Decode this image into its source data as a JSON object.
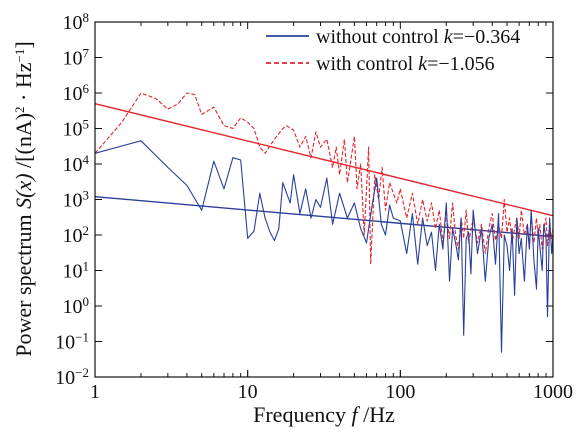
{
  "chart_data": {
    "type": "line",
    "xscale": "log",
    "yscale": "log",
    "xlim": [
      1,
      1000
    ],
    "ylim": [
      0.01,
      100000000
    ],
    "xticks": [
      {
        "value": 1,
        "label": "1"
      },
      {
        "value": 10,
        "label": "10"
      },
      {
        "value": 100,
        "label": "100"
      },
      {
        "value": 1000,
        "label": "1000"
      }
    ],
    "yticks": [
      {
        "value": 0.01,
        "base": "10",
        "exp": "−2"
      },
      {
        "value": 0.1,
        "base": "10",
        "exp": "−1"
      },
      {
        "value": 1,
        "base": "10",
        "exp": "0"
      },
      {
        "value": 10,
        "base": "10",
        "exp": "1"
      },
      {
        "value": 100,
        "base": "10",
        "exp": "2"
      },
      {
        "value": 1000,
        "base": "10",
        "exp": "3"
      },
      {
        "value": 10000,
        "base": "10",
        "exp": "4"
      },
      {
        "value": 100000,
        "base": "10",
        "exp": "5"
      },
      {
        "value": 1000000,
        "base": "10",
        "exp": "6"
      },
      {
        "value": 10000000,
        "base": "10",
        "exp": "7"
      },
      {
        "value": 100000000,
        "base": "10",
        "exp": "8"
      }
    ],
    "xlabel": {
      "prefix": "Frequency ",
      "var": "f",
      "suffix": " /Hz"
    },
    "ylabel": {
      "prefix": "Power spectrum ",
      "var": "S(x)",
      "suffix": " /[(nA)",
      "sq": "2",
      "mid": " · Hz",
      "inv": "−1",
      "close": "]"
    },
    "grid": false,
    "legend_position": "top-right",
    "series": [
      {
        "legend": {
          "prefix": "without control ",
          "var": "k",
          "suffix": "=−0.364"
        },
        "color": "#2a3f9a",
        "dash": "solid",
        "points": [
          [
            1,
            20000
          ],
          [
            2,
            45000
          ],
          [
            3,
            8000
          ],
          [
            4,
            2500
          ],
          [
            5,
            500
          ],
          [
            6,
            12000
          ],
          [
            7,
            2000
          ],
          [
            8,
            15000
          ],
          [
            9,
            13000
          ],
          [
            10,
            80
          ],
          [
            11,
            130
          ],
          [
            12,
            1500
          ],
          [
            13,
            300
          ],
          [
            14,
            120
          ],
          [
            15,
            70
          ],
          [
            16,
            150
          ],
          [
            17,
            3000
          ],
          [
            18,
            1500
          ],
          [
            19,
            800
          ],
          [
            20,
            5000
          ],
          [
            22,
            400
          ],
          [
            24,
            2000
          ],
          [
            26,
            300
          ],
          [
            28,
            1000
          ],
          [
            30,
            600
          ],
          [
            33,
            4000
          ],
          [
            36,
            200
          ],
          [
            40,
            1500
          ],
          [
            45,
            300
          ],
          [
            50,
            800
          ],
          [
            55,
            150
          ],
          [
            60,
            60
          ],
          [
            65,
            600
          ],
          [
            70,
            4000
          ],
          [
            75,
            200
          ],
          [
            80,
            100
          ],
          [
            85,
            700
          ],
          [
            90,
            300
          ],
          [
            100,
            250
          ],
          [
            110,
            30
          ],
          [
            120,
            400
          ],
          [
            130,
            15
          ],
          [
            140,
            300
          ],
          [
            150,
            50
          ],
          [
            160,
            120
          ],
          [
            170,
            10
          ],
          [
            180,
            200
          ],
          [
            190,
            40
          ],
          [
            200,
            800
          ],
          [
            210,
            5
          ],
          [
            220,
            150
          ],
          [
            230,
            60
          ],
          [
            240,
            20
          ],
          [
            250,
            300
          ],
          [
            260,
            0.15
          ],
          [
            270,
            80
          ],
          [
            280,
            120
          ],
          [
            290,
            8
          ],
          [
            300,
            500
          ],
          [
            320,
            30
          ],
          [
            340,
            150
          ],
          [
            360,
            5
          ],
          [
            380,
            80
          ],
          [
            400,
            200
          ],
          [
            420,
            15
          ],
          [
            440,
            400
          ],
          [
            460,
            0.05
          ],
          [
            480,
            100
          ],
          [
            500,
            50
          ],
          [
            520,
            10
          ],
          [
            540,
            150
          ],
          [
            560,
            2
          ],
          [
            580,
            300
          ],
          [
            600,
            30
          ],
          [
            620,
            80
          ],
          [
            650,
            5
          ],
          [
            680,
            200
          ],
          [
            700,
            40
          ],
          [
            720,
            500
          ],
          [
            750,
            20
          ],
          [
            780,
            3
          ],
          [
            800,
            150
          ],
          [
            820,
            50
          ],
          [
            850,
            10
          ],
          [
            870,
            200
          ],
          [
            900,
            80
          ],
          [
            920,
            0.5
          ],
          [
            950,
            300
          ],
          [
            980,
            30
          ],
          [
            1000,
            100
          ]
        ]
      },
      {
        "legend": {
          "prefix": "with control ",
          "var": "k",
          "suffix": "=−1.056"
        },
        "color": "#e3242b",
        "dash": "dashed",
        "points": [
          [
            1,
            20000
          ],
          [
            1.5,
            150000
          ],
          [
            2,
            1000000
          ],
          [
            2.5,
            700000
          ],
          [
            3,
            350000
          ],
          [
            3.5,
            500000
          ],
          [
            4,
            1000000
          ],
          [
            4.5,
            900000
          ],
          [
            5,
            250000
          ],
          [
            6,
            400000
          ],
          [
            7,
            120000
          ],
          [
            8,
            100000
          ],
          [
            9,
            200000
          ],
          [
            10,
            150000
          ],
          [
            11,
            100000
          ],
          [
            12,
            30000
          ],
          [
            13,
            20000
          ],
          [
            15,
            50000
          ],
          [
            17,
            100000
          ],
          [
            18,
            120000
          ],
          [
            20,
            90000
          ],
          [
            22,
            30000
          ],
          [
            24,
            60000
          ],
          [
            26,
            15000
          ],
          [
            28,
            80000
          ],
          [
            30,
            30000
          ],
          [
            33,
            50000
          ],
          [
            36,
            8000
          ],
          [
            38,
            30000
          ],
          [
            40,
            5000
          ],
          [
            43,
            50000
          ],
          [
            45,
            3000
          ],
          [
            47,
            10000
          ],
          [
            50,
            60000
          ],
          [
            52,
            2000
          ],
          [
            55,
            10000
          ],
          [
            58,
            100
          ],
          [
            62,
            30000
          ],
          [
            64,
            15
          ],
          [
            68,
            5000
          ],
          [
            72,
            1000
          ],
          [
            76,
            8000
          ],
          [
            80,
            500
          ],
          [
            85,
            3000
          ],
          [
            90,
            1500
          ],
          [
            95,
            800
          ],
          [
            100,
            2000
          ],
          [
            110,
            300
          ],
          [
            120,
            1500
          ],
          [
            130,
            200
          ],
          [
            140,
            1000
          ],
          [
            150,
            250
          ],
          [
            160,
            800
          ],
          [
            170,
            150
          ],
          [
            180,
            500
          ],
          [
            190,
            60
          ],
          [
            200,
            400
          ],
          [
            210,
            80
          ],
          [
            220,
            800
          ],
          [
            230,
            100
          ],
          [
            240,
            40
          ],
          [
            250,
            300
          ],
          [
            260,
            80
          ],
          [
            270,
            500
          ],
          [
            280,
            60
          ],
          [
            300,
            300
          ],
          [
            320,
            60
          ],
          [
            340,
            200
          ],
          [
            360,
            30
          ],
          [
            380,
            150
          ],
          [
            400,
            400
          ],
          [
            420,
            70
          ],
          [
            440,
            200
          ],
          [
            460,
            80
          ],
          [
            480,
            1000
          ],
          [
            500,
            120
          ],
          [
            520,
            300
          ],
          [
            540,
            60
          ],
          [
            560,
            150
          ],
          [
            580,
            300
          ],
          [
            600,
            80
          ],
          [
            620,
            500
          ],
          [
            650,
            100
          ],
          [
            680,
            200
          ],
          [
            700,
            40
          ],
          [
            720,
            400
          ],
          [
            750,
            60
          ],
          [
            780,
            300
          ],
          [
            800,
            90
          ],
          [
            820,
            200
          ],
          [
            850,
            40
          ],
          [
            870,
            150
          ],
          [
            900,
            300
          ],
          [
            920,
            50
          ],
          [
            950,
            200
          ],
          [
            980,
            80
          ],
          [
            1000,
            150
          ]
        ]
      }
    ],
    "fits": [
      {
        "color": "#2a3f9a",
        "from": [
          1,
          1200
        ],
        "to": [
          1000,
          90
        ]
      },
      {
        "color": "#e3242b",
        "from": [
          1,
          500000
        ],
        "to": [
          1000,
          350
        ]
      }
    ]
  }
}
